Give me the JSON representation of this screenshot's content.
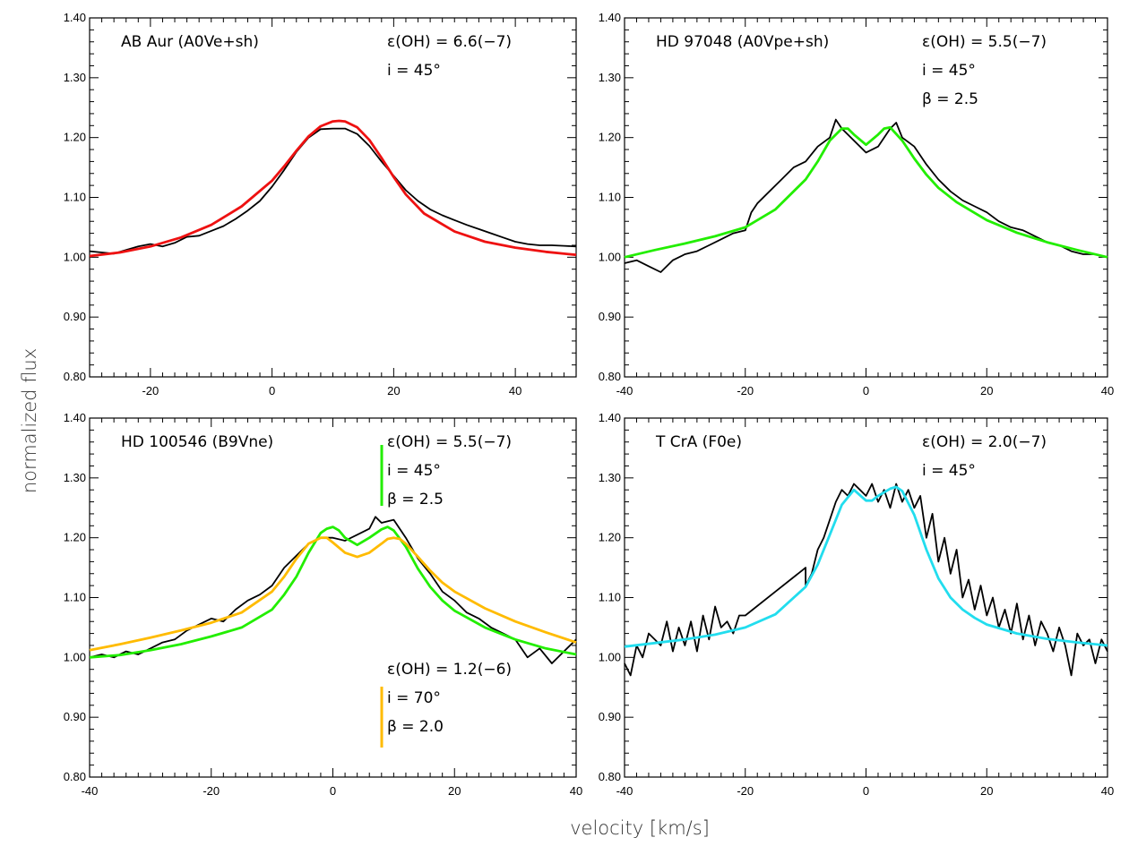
{
  "figure": {
    "xlabel": "velocity [km/s]",
    "ylabel": "normalized flux"
  },
  "chart_data": [
    {
      "type": "line",
      "id": "panel-ab-aur",
      "star_label": "AB Aur (A0Ve+sh)",
      "params": [
        "ε(OH) = 6.6(−7)",
        "i = 45°"
      ],
      "xlim": [
        -30,
        50
      ],
      "ylim": [
        0.8,
        1.4
      ],
      "xticks": [
        -20,
        0,
        20,
        40
      ],
      "yticks": [
        0.8,
        0.9,
        1.0,
        1.1,
        1.2,
        1.3,
        1.4
      ],
      "show_xtick_labels": true,
      "series": [
        {
          "kind": "observed",
          "color": "#000000",
          "x": [
            -30,
            -28,
            -26,
            -24,
            -22,
            -20,
            -18,
            -16,
            -14,
            -12,
            -10,
            -8,
            -6,
            -4,
            -2,
            0,
            2,
            4,
            6,
            8,
            10,
            12,
            14,
            16,
            18,
            20,
            22,
            24,
            26,
            28,
            30,
            32,
            34,
            36,
            38,
            40,
            42,
            44,
            46,
            48,
            50
          ],
          "y": [
            1.01,
            1.008,
            1.006,
            1.012,
            1.018,
            1.022,
            1.018,
            1.024,
            1.034,
            1.036,
            1.044,
            1.052,
            1.064,
            1.078,
            1.094,
            1.118,
            1.146,
            1.176,
            1.2,
            1.214,
            1.215,
            1.215,
            1.206,
            1.186,
            1.16,
            1.136,
            1.112,
            1.094,
            1.08,
            1.07,
            1.062,
            1.054,
            1.047,
            1.04,
            1.033,
            1.026,
            1.022,
            1.02,
            1.02,
            1.019,
            1.018
          ]
        },
        {
          "kind": "model",
          "color": "#ee1111",
          "x": [
            -30,
            -25,
            -20,
            -15,
            -10,
            -5,
            0,
            2,
            4,
            6,
            8,
            10,
            11,
            12,
            14,
            16,
            18,
            20,
            22,
            25,
            30,
            35,
            40,
            45,
            50
          ],
          "y": [
            1.002,
            1.008,
            1.018,
            1.033,
            1.054,
            1.085,
            1.128,
            1.152,
            1.178,
            1.202,
            1.219,
            1.227,
            1.228,
            1.227,
            1.217,
            1.196,
            1.166,
            1.134,
            1.105,
            1.073,
            1.043,
            1.026,
            1.016,
            1.009,
            1.004
          ]
        }
      ]
    },
    {
      "type": "line",
      "id": "panel-hd97048",
      "star_label": "HD 97048 (A0Vpe+sh)",
      "params": [
        "ε(OH) = 5.5(−7)",
        "i = 45°",
        "β = 2.5"
      ],
      "xlim": [
        -40,
        40
      ],
      "ylim": [
        0.8,
        1.4
      ],
      "xticks": [
        -40,
        -20,
        0,
        20,
        40
      ],
      "yticks": [
        0.8,
        0.9,
        1.0,
        1.1,
        1.2,
        1.3,
        1.4
      ],
      "show_xtick_labels": true,
      "series": [
        {
          "kind": "observed",
          "color": "#000000",
          "x": [
            -40,
            -38,
            -36,
            -34,
            -32,
            -30,
            -28,
            -26,
            -24,
            -22,
            -20,
            -19,
            -18,
            -16,
            -14,
            -12,
            -10,
            -8,
            -6,
            -5,
            -4,
            -2,
            0,
            2,
            4,
            5,
            6,
            8,
            10,
            12,
            14,
            16,
            18,
            20,
            22,
            24,
            26,
            28,
            30,
            32,
            34,
            36,
            38,
            40
          ],
          "y": [
            0.99,
            0.995,
            0.985,
            0.975,
            0.995,
            1.005,
            1.01,
            1.02,
            1.03,
            1.04,
            1.045,
            1.075,
            1.09,
            1.11,
            1.13,
            1.15,
            1.16,
            1.185,
            1.2,
            1.23,
            1.215,
            1.195,
            1.175,
            1.185,
            1.215,
            1.225,
            1.2,
            1.185,
            1.155,
            1.13,
            1.11,
            1.095,
            1.085,
            1.075,
            1.06,
            1.05,
            1.045,
            1.035,
            1.025,
            1.02,
            1.01,
            1.005,
            1.005,
            1.0
          ]
        },
        {
          "kind": "model",
          "color": "#22ee00",
          "x": [
            -40,
            -35,
            -30,
            -25,
            -20,
            -15,
            -10,
            -8,
            -6,
            -4,
            -3,
            -2,
            0,
            2,
            3,
            4,
            6,
            8,
            10,
            12,
            15,
            20,
            25,
            30,
            35,
            40
          ],
          "y": [
            1.0,
            1.012,
            1.023,
            1.035,
            1.05,
            1.08,
            1.13,
            1.16,
            1.195,
            1.215,
            1.215,
            1.205,
            1.188,
            1.205,
            1.215,
            1.217,
            1.195,
            1.165,
            1.138,
            1.116,
            1.092,
            1.062,
            1.041,
            1.025,
            1.012,
            1.0
          ]
        }
      ]
    },
    {
      "type": "line",
      "id": "panel-hd100546",
      "star_label": "HD 100546 (B9Vne)",
      "params": [
        "ε(OH) = 5.5(−7)",
        "i = 45°",
        "β = 2.5"
      ],
      "params2": [
        "ε(OH) = 1.2(−6)",
        "i = 70°",
        "β = 2.0"
      ],
      "xlim": [
        -40,
        40
      ],
      "ylim": [
        0.8,
        1.4
      ],
      "xticks": [
        -40,
        -20,
        0,
        20,
        40
      ],
      "yticks": [
        0.8,
        0.9,
        1.0,
        1.1,
        1.2,
        1.3,
        1.4
      ],
      "show_xtick_labels": true,
      "series": [
        {
          "kind": "observed",
          "color": "#000000",
          "x": [
            -40,
            -38,
            -36,
            -34,
            -32,
            -30,
            -28,
            -26,
            -24,
            -22,
            -20,
            -18,
            -16,
            -14,
            -12,
            -10,
            -8,
            -6,
            -4,
            -2,
            0,
            2,
            4,
            6,
            7,
            8,
            10,
            12,
            14,
            16,
            18,
            20,
            22,
            24,
            26,
            28,
            30,
            32,
            34,
            36,
            38,
            40
          ],
          "y": [
            1.0,
            1.005,
            1.0,
            1.01,
            1.005,
            1.015,
            1.025,
            1.03,
            1.045,
            1.055,
            1.065,
            1.06,
            1.08,
            1.095,
            1.105,
            1.12,
            1.15,
            1.17,
            1.19,
            1.2,
            1.2,
            1.195,
            1.205,
            1.215,
            1.235,
            1.225,
            1.23,
            1.2,
            1.165,
            1.14,
            1.11,
            1.095,
            1.075,
            1.065,
            1.05,
            1.04,
            1.03,
            1.0,
            1.015,
            0.99,
            1.01,
            1.03
          ]
        },
        {
          "kind": "model",
          "color": "#22ee00",
          "x": [
            -40,
            -35,
            -30,
            -25,
            -20,
            -15,
            -10,
            -8,
            -6,
            -4,
            -2,
            -1,
            0,
            1,
            2,
            4,
            6,
            8,
            9,
            10,
            12,
            14,
            16,
            18,
            20,
            25,
            30,
            35,
            40
          ],
          "y": [
            1.0,
            1.004,
            1.012,
            1.022,
            1.035,
            1.05,
            1.08,
            1.105,
            1.135,
            1.175,
            1.208,
            1.215,
            1.218,
            1.212,
            1.2,
            1.188,
            1.2,
            1.214,
            1.218,
            1.212,
            1.185,
            1.148,
            1.118,
            1.095,
            1.078,
            1.05,
            1.03,
            1.015,
            1.005
          ]
        },
        {
          "kind": "model",
          "color": "#ffbb00",
          "x": [
            -40,
            -35,
            -30,
            -25,
            -20,
            -15,
            -10,
            -8,
            -6,
            -4,
            -2,
            -1,
            0,
            2,
            4,
            6,
            8,
            9,
            10,
            11,
            12,
            14,
            16,
            18,
            20,
            25,
            30,
            35,
            40
          ],
          "y": [
            1.012,
            1.022,
            1.033,
            1.045,
            1.058,
            1.075,
            1.11,
            1.135,
            1.165,
            1.19,
            1.2,
            1.2,
            1.192,
            1.175,
            1.168,
            1.175,
            1.19,
            1.198,
            1.2,
            1.198,
            1.19,
            1.168,
            1.145,
            1.125,
            1.11,
            1.082,
            1.06,
            1.042,
            1.025
          ]
        }
      ]
    },
    {
      "type": "line",
      "id": "panel-tcra",
      "star_label": "T CrA (F0e)",
      "params": [
        "ε(OH) = 2.0(−7)",
        "i = 45°"
      ],
      "xlim": [
        -40,
        40
      ],
      "ylim": [
        0.8,
        1.4
      ],
      "xticks": [
        -40,
        -20,
        0,
        20,
        40
      ],
      "yticks": [
        0.8,
        0.9,
        1.0,
        1.1,
        1.2,
        1.3,
        1.4
      ],
      "show_xtick_labels": true,
      "series": [
        {
          "kind": "observed",
          "color": "#000000",
          "x": [
            -40,
            -39,
            -38,
            -37,
            -36,
            -35,
            -34,
            -33,
            -32,
            -31,
            -30,
            -29,
            -28,
            -27,
            -26,
            -25,
            -24,
            -23,
            -22,
            -21,
            -20,
            -15,
            -10,
            -10,
            -9,
            -8,
            -7,
            -6,
            -5,
            -4,
            -3,
            -2,
            -1,
            0,
            1,
            2,
            3,
            4,
            5,
            6,
            7,
            8,
            9,
            10,
            11,
            12,
            13,
            14,
            15,
            16,
            17,
            18,
            19,
            20,
            21,
            22,
            23,
            24,
            25,
            26,
            27,
            28,
            29,
            30,
            31,
            32,
            33,
            34,
            35,
            36,
            37,
            38,
            39,
            40
          ],
          "y": [
            0.99,
            0.97,
            1.02,
            1.0,
            1.04,
            1.03,
            1.02,
            1.06,
            1.01,
            1.05,
            1.02,
            1.06,
            1.01,
            1.07,
            1.03,
            1.085,
            1.05,
            1.06,
            1.04,
            1.07,
            1.07,
            1.11,
            1.15,
            1.12,
            1.14,
            1.18,
            1.2,
            1.23,
            1.26,
            1.28,
            1.27,
            1.29,
            1.28,
            1.27,
            1.29,
            1.26,
            1.28,
            1.25,
            1.29,
            1.26,
            1.28,
            1.25,
            1.27,
            1.2,
            1.24,
            1.16,
            1.2,
            1.14,
            1.18,
            1.1,
            1.13,
            1.08,
            1.12,
            1.07,
            1.1,
            1.05,
            1.08,
            1.04,
            1.09,
            1.03,
            1.07,
            1.02,
            1.06,
            1.04,
            1.01,
            1.05,
            1.02,
            0.97,
            1.04,
            1.02,
            1.03,
            0.99,
            1.03,
            1.01
          ]
        },
        {
          "kind": "model",
          "color": "#22ddee",
          "x": [
            -40,
            -35,
            -30,
            -25,
            -20,
            -15,
            -10,
            -8,
            -6,
            -4,
            -2,
            0,
            1,
            2,
            3,
            4,
            5,
            6,
            8,
            10,
            12,
            14,
            16,
            18,
            20,
            25,
            30,
            35,
            40
          ],
          "y": [
            1.018,
            1.024,
            1.03,
            1.038,
            1.05,
            1.072,
            1.118,
            1.155,
            1.205,
            1.255,
            1.28,
            1.262,
            1.262,
            1.27,
            1.276,
            1.282,
            1.285,
            1.278,
            1.238,
            1.18,
            1.132,
            1.1,
            1.08,
            1.066,
            1.055,
            1.04,
            1.031,
            1.025,
            1.02
          ]
        }
      ]
    }
  ]
}
